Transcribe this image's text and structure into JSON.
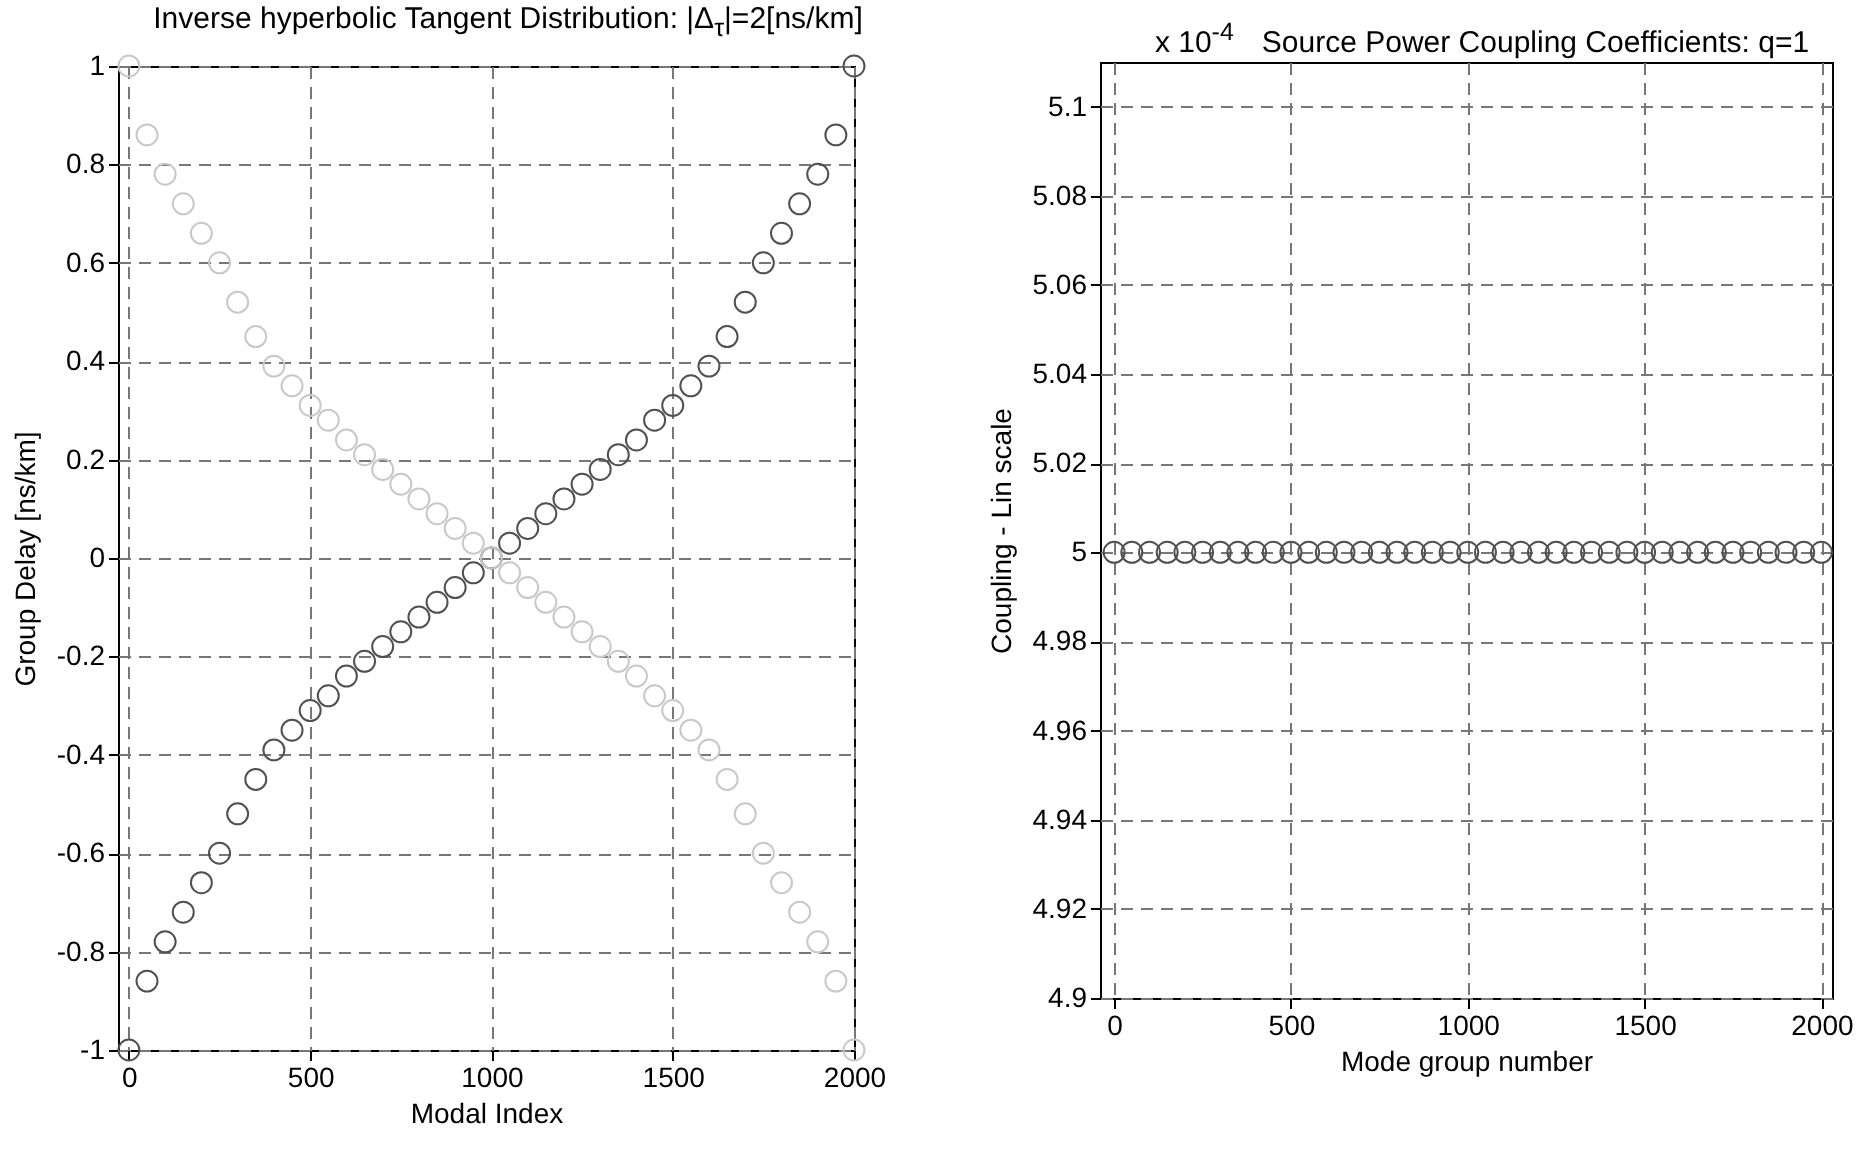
{
  "chart_data": [
    {
      "type": "scatter",
      "title": "Inverse hyperbolic Tangent Distribution: |Δ$_{τ}$|=2[ns/km]",
      "xlabel": "Modal Index",
      "ylabel": "Group Delay [ns/km]",
      "marker": "circle",
      "grid": true,
      "x": [
        0,
        50,
        100,
        150,
        200,
        250,
        300,
        350,
        400,
        450,
        500,
        550,
        600,
        650,
        700,
        750,
        800,
        850,
        900,
        950,
        1000,
        1050,
        1100,
        1150,
        1200,
        1250,
        1300,
        1350,
        1400,
        1450,
        1500,
        1550,
        1600,
        1650,
        1700,
        1750,
        1800,
        1850,
        1900,
        1950,
        2000
      ],
      "series": [
        {
          "color": "#505050",
          "values": [
            -1,
            -0.86,
            -0.78,
            -0.72,
            -0.66,
            -0.6,
            -0.52,
            -0.45,
            -0.39,
            -0.35,
            -0.31,
            -0.28,
            -0.24,
            -0.21,
            -0.18,
            -0.15,
            -0.12,
            -0.09,
            -0.06,
            -0.03,
            0,
            0.03,
            0.06,
            0.09,
            0.12,
            0.15,
            0.18,
            0.21,
            0.24,
            0.28,
            0.31,
            0.35,
            0.39,
            0.45,
            0.52,
            0.6,
            0.66,
            0.72,
            0.78,
            0.86,
            1
          ]
        },
        {
          "color": "#c8c8c8",
          "values": [
            1,
            0.86,
            0.78,
            0.72,
            0.66,
            0.6,
            0.52,
            0.45,
            0.39,
            0.35,
            0.31,
            0.28,
            0.24,
            0.21,
            0.18,
            0.15,
            0.12,
            0.09,
            0.06,
            0.03,
            0,
            -0.03,
            -0.06,
            -0.09,
            -0.12,
            -0.15,
            -0.18,
            -0.21,
            -0.24,
            -0.28,
            -0.31,
            -0.35,
            -0.39,
            -0.45,
            -0.52,
            -0.6,
            -0.66,
            -0.72,
            -0.78,
            -0.86,
            -1
          ]
        }
      ],
      "xlim": [
        -30,
        2000
      ],
      "xticks": [
        0,
        500,
        1000,
        1500,
        2000
      ],
      "ylim": [
        -1,
        1
      ],
      "yticks": [
        -1,
        -0.8,
        -0.6,
        -0.4,
        -0.2,
        0,
        0.2,
        0.4,
        0.6,
        0.8,
        1
      ]
    },
    {
      "type": "scatter",
      "title": "Source Power Coupling Coefficients: q=1",
      "annotations": [
        "x 10$^{-4}$"
      ],
      "xlabel": "Mode group number",
      "ylabel": "Coupling - Lin scale",
      "marker": "circle",
      "grid": true,
      "x": [
        0,
        50,
        100,
        150,
        200,
        250,
        300,
        350,
        400,
        450,
        500,
        550,
        600,
        650,
        700,
        750,
        800,
        850,
        900,
        950,
        1000,
        1050,
        1100,
        1150,
        1200,
        1250,
        1300,
        1350,
        1400,
        1450,
        1500,
        1550,
        1600,
        1650,
        1700,
        1750,
        1800,
        1850,
        1900,
        1950,
        2000
      ],
      "series": [
        {
          "color": "#505050",
          "values": [
            5,
            5,
            5,
            5,
            5,
            5,
            5,
            5,
            5,
            5,
            5,
            5,
            5,
            5,
            5,
            5,
            5,
            5,
            5,
            5,
            5,
            5,
            5,
            5,
            5,
            5,
            5,
            5,
            5,
            5,
            5,
            5,
            5,
            5,
            5,
            5,
            5,
            5,
            5,
            5,
            5
          ]
        }
      ],
      "xlim": [
        -40,
        2030
      ],
      "xticks": [
        0,
        500,
        1000,
        1500,
        2000
      ],
      "ylim": [
        4.9,
        5.11
      ],
      "yticks": [
        4.9,
        4.92,
        4.94,
        4.96,
        4.98,
        5,
        5.02,
        5.04,
        5.06,
        5.08,
        5.1
      ]
    }
  ]
}
